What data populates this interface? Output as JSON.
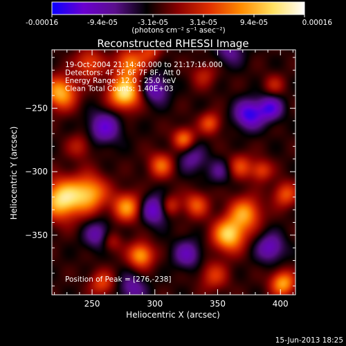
{
  "chart_data": {
    "type": "heatmap",
    "title": "Reconstructed RHESSI Image",
    "xlabel": "Heliocentric X (arcsec)",
    "ylabel": "Heliocentric Y (arcsec)",
    "xlim": [
      218,
      412
    ],
    "ylim": [
      -397,
      -204
    ],
    "xticks": [
      250,
      300,
      350,
      400
    ],
    "yticks": [
      -250,
      -300,
      -350
    ],
    "colorbar": {
      "range": [
        -0.00016,
        0.00016
      ],
      "tick_labels": [
        "-0.00016",
        "-9.4e-05",
        "-3.1e-05",
        "3.1e-05",
        "9.4e-05",
        "0.00016"
      ],
      "units_label": "(photons cm⁻² s⁻¹ asec⁻²)",
      "colormap": [
        "#0a00ff",
        "#6a00d0",
        "#5a0f8c",
        "#000000",
        "#8a0000",
        "#e03000",
        "#ff8c00",
        "#ffe060",
        "#ffffff"
      ]
    },
    "annotations": [
      "19-Oct-2004 21:14:40.000 to 21:17:16.000",
      "Detectors: 4F 5F 6F 7F 8F, Att 0",
      "Energy Range: 12.0 - 25.0 keV",
      "Clean    Total Counts: 1.40E+03"
    ],
    "peak_label": "Position of Peak = [276,-238]",
    "peak": [
      276,
      -238
    ],
    "sources": [
      {
        "x": 276,
        "y": -238,
        "amp": 1.0,
        "sigma": 9
      },
      {
        "x": 226,
        "y": -322,
        "amp": 0.95,
        "sigma": 11
      },
      {
        "x": 248,
        "y": -317,
        "amp": 0.75,
        "sigma": 10
      },
      {
        "x": 225,
        "y": -238,
        "amp": 0.8,
        "sigma": 9
      },
      {
        "x": 280,
        "y": -215,
        "amp": 0.65,
        "sigma": 8
      },
      {
        "x": 248,
        "y": -215,
        "amp": 0.5,
        "sigma": 8
      },
      {
        "x": 359,
        "y": -350,
        "amp": 0.9,
        "sigma": 9
      },
      {
        "x": 372,
        "y": -333,
        "amp": 0.7,
        "sigma": 9
      },
      {
        "x": 289,
        "y": -366,
        "amp": 0.75,
        "sigma": 7
      },
      {
        "x": 278,
        "y": -328,
        "amp": 0.7,
        "sigma": 8
      },
      {
        "x": 305,
        "y": -295,
        "amp": 0.55,
        "sigma": 7
      },
      {
        "x": 323,
        "y": -274,
        "amp": 0.6,
        "sigma": 6
      },
      {
        "x": 344,
        "y": -262,
        "amp": 0.5,
        "sigma": 6
      },
      {
        "x": 333,
        "y": -326,
        "amp": 0.5,
        "sigma": 7
      },
      {
        "x": 312,
        "y": -327,
        "amp": 0.45,
        "sigma": 6
      },
      {
        "x": 402,
        "y": -388,
        "amp": 0.75,
        "sigma": 7
      },
      {
        "x": 404,
        "y": -318,
        "amp": 0.5,
        "sigma": 7
      },
      {
        "x": 368,
        "y": -296,
        "amp": 0.45,
        "sigma": 7
      },
      {
        "x": 385,
        "y": -299,
        "amp": 0.45,
        "sigma": 6
      },
      {
        "x": 347,
        "y": -382,
        "amp": 0.4,
        "sigma": 8
      },
      {
        "x": 258,
        "y": -388,
        "amp": 0.45,
        "sigma": 7
      },
      {
        "x": 339,
        "y": -224,
        "amp": 0.3,
        "sigma": 7
      },
      {
        "x": 296,
        "y": -205,
        "amp": 0.4,
        "sigma": 6
      },
      {
        "x": 395,
        "y": -232,
        "amp": 0.3,
        "sigma": 6
      },
      {
        "x": 240,
        "y": -280,
        "amp": 0.3,
        "sigma": 7
      },
      {
        "x": 265,
        "y": -355,
        "amp": 0.35,
        "sigma": 6
      },
      {
        "x": 300,
        "y": -235,
        "amp": -0.5,
        "sigma": 8
      },
      {
        "x": 260,
        "y": -265,
        "amp": -0.55,
        "sigma": 9
      },
      {
        "x": 375,
        "y": -255,
        "amp": -0.7,
        "sigma": 8
      },
      {
        "x": 392,
        "y": -250,
        "amp": -0.6,
        "sigma": 7
      },
      {
        "x": 300,
        "y": -330,
        "amp": -0.6,
        "sigma": 8
      },
      {
        "x": 326,
        "y": -365,
        "amp": -0.45,
        "sigma": 8
      },
      {
        "x": 392,
        "y": -360,
        "amp": -0.5,
        "sigma": 8
      },
      {
        "x": 360,
        "y": -205,
        "amp": -0.35,
        "sigma": 8
      },
      {
        "x": 330,
        "y": -290,
        "amp": -0.35,
        "sigma": 8
      },
      {
        "x": 255,
        "y": -350,
        "amp": -0.45,
        "sigma": 8
      },
      {
        "x": 282,
        "y": -392,
        "amp": -0.4,
        "sigma": 8
      },
      {
        "x": 352,
        "y": -300,
        "amp": -0.3,
        "sigma": 7
      }
    ]
  },
  "footer_timestamp": "15-Jun-2013 18:25"
}
